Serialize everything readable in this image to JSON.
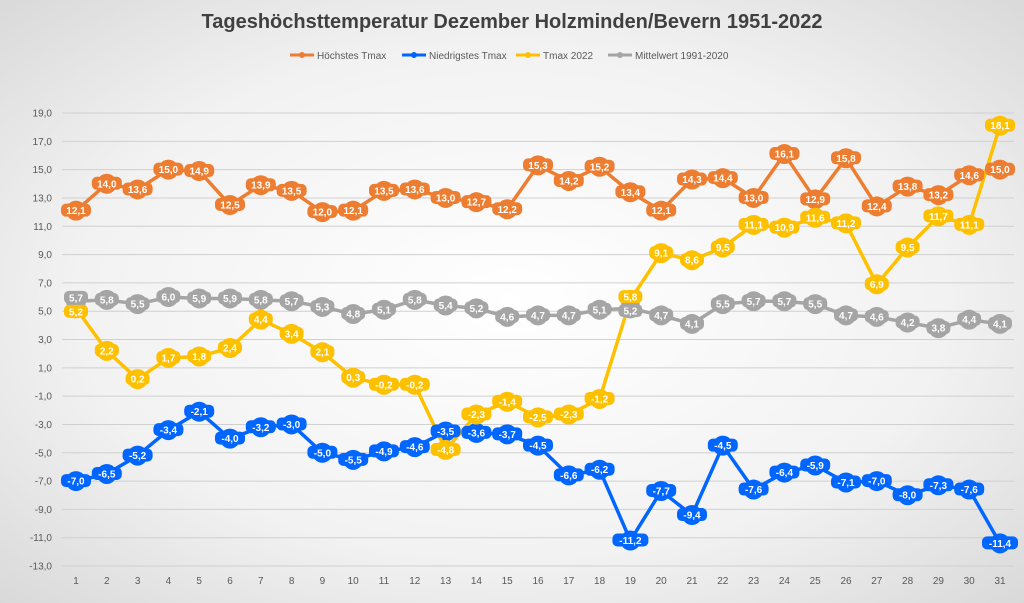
{
  "chart_data": {
    "type": "line",
    "title": "Tageshöchsttemperatur Dezember Holzminden/Bevern 1951-2022",
    "xlabel": "",
    "ylabel": "",
    "x": [
      1,
      2,
      3,
      4,
      5,
      6,
      7,
      8,
      9,
      10,
      11,
      12,
      13,
      14,
      15,
      16,
      17,
      18,
      19,
      20,
      21,
      22,
      23,
      24,
      25,
      26,
      27,
      28,
      29,
      30,
      31
    ],
    "ylim": [
      -13,
      19
    ],
    "yticks": [
      "19,0",
      "17,0",
      "15,0",
      "13,0",
      "11,0",
      "9,0",
      "7,0",
      "5,0",
      "3,0",
      "1,0",
      "-1,0",
      "-3,0",
      "-5,0",
      "-7,0",
      "-9,0",
      "-11,0",
      "-13,0"
    ],
    "grid": true,
    "legend_position": "top",
    "series": [
      {
        "name": "Höchstes Tmax",
        "color": "#ED7D31",
        "values": [
          12.1,
          14.0,
          13.6,
          15.0,
          14.9,
          12.5,
          13.9,
          13.5,
          12.0,
          12.1,
          13.5,
          13.6,
          13.0,
          12.7,
          12.2,
          15.3,
          14.2,
          15.2,
          13.4,
          12.1,
          14.3,
          14.4,
          13.0,
          16.1,
          12.9,
          15.8,
          12.4,
          13.8,
          13.2,
          14.6,
          15.0
        ]
      },
      {
        "name": "Niedrigstes Tmax",
        "color": "#0066FF",
        "values": [
          -7.0,
          -6.5,
          -5.2,
          -3.4,
          -2.1,
          -4.0,
          -3.2,
          -3.0,
          -5.0,
          -5.5,
          -4.9,
          -4.6,
          -3.5,
          -3.6,
          -3.7,
          -4.5,
          -6.6,
          -6.2,
          -11.2,
          -7.7,
          -9.4,
          -4.5,
          -7.6,
          -6.4,
          -5.9,
          -7.1,
          -7.0,
          -8.0,
          -7.3,
          -7.6,
          -11.4
        ]
      },
      {
        "name": "Tmax 2022",
        "color": "#FFC000",
        "values": [
          5.2,
          2.2,
          0.2,
          1.7,
          1.8,
          2.4,
          4.4,
          3.4,
          2.1,
          0.3,
          -0.2,
          -0.2,
          -4.8,
          -2.3,
          -1.4,
          -2.5,
          -2.3,
          -1.2,
          5.8,
          9.1,
          8.6,
          9.5,
          11.1,
          10.9,
          11.6,
          11.2,
          6.9,
          9.5,
          11.7,
          11.1,
          18.1
        ]
      },
      {
        "name": "Mittelwert 1991-2020",
        "color": "#A5A5A5",
        "values": [
          5.7,
          5.8,
          5.5,
          6.0,
          5.9,
          5.9,
          5.8,
          5.7,
          5.3,
          4.8,
          5.1,
          5.8,
          5.4,
          5.2,
          4.6,
          4.7,
          4.7,
          5.1,
          5.2,
          4.7,
          4.1,
          5.5,
          5.7,
          5.7,
          5.5,
          4.7,
          4.6,
          4.2,
          3.8,
          4.4,
          4.1
        ]
      }
    ]
  }
}
